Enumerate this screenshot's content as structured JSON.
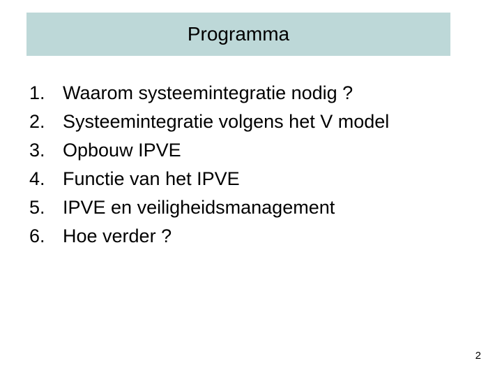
{
  "title": "Programma",
  "title_bg_color": "#bdd8d8",
  "title_fontsize": 28,
  "body_bg_color": "#ffffff",
  "list_fontsize": 27,
  "text_color": "#000000",
  "items": [
    {
      "number": "1.",
      "text": "Waarom systeemintegratie nodig ?"
    },
    {
      "number": "2.",
      "text": "Systeemintegratie volgens het V model"
    },
    {
      "number": "3.",
      "text": "Opbouw IPVE"
    },
    {
      "number": "4.",
      "text": "Functie  van het IPVE"
    },
    {
      "number": "5.",
      "text": "IPVE en veiligheidsmanagement"
    },
    {
      "number": "6.",
      "text": "Hoe verder ?"
    }
  ],
  "page_number": "2"
}
